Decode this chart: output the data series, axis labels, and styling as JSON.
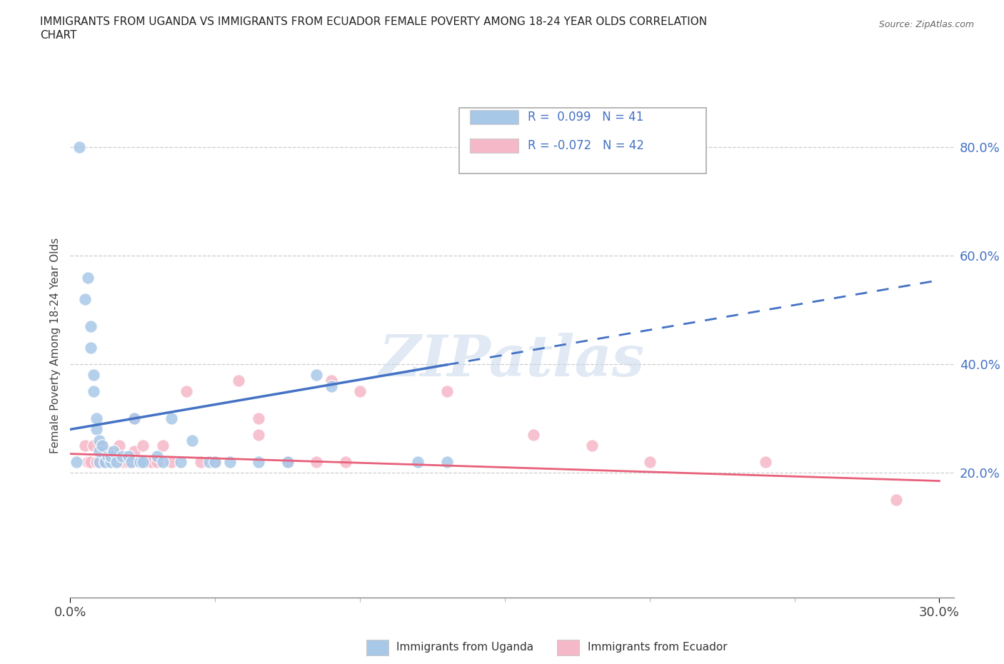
{
  "title_line1": "IMMIGRANTS FROM UGANDA VS IMMIGRANTS FROM ECUADOR FEMALE POVERTY AMONG 18-24 YEAR OLDS CORRELATION",
  "title_line2": "CHART",
  "source": "Source: ZipAtlas.com",
  "ylabel": "Female Poverty Among 18-24 Year Olds",
  "y_ticks": [
    0.0,
    0.2,
    0.4,
    0.6,
    0.8
  ],
  "y_tick_labels": [
    "",
    "20.0%",
    "40.0%",
    "60.0%",
    "80.0%"
  ],
  "xlim": [
    0.0,
    0.305
  ],
  "ylim": [
    -0.03,
    0.9
  ],
  "uganda_color": "#a8c8e8",
  "ecuador_color": "#f5b8c8",
  "uganda_line_color": "#4472c4",
  "ecuador_line_color": "#e8607a",
  "watermark": "ZIPatlas",
  "uganda_scatter_x": [
    0.003,
    0.006,
    0.007,
    0.008,
    0.008,
    0.009,
    0.009,
    0.01,
    0.01,
    0.01,
    0.011,
    0.012,
    0.012,
    0.013,
    0.014,
    0.014,
    0.015,
    0.016,
    0.018,
    0.02,
    0.021,
    0.022,
    0.024,
    0.025,
    0.03,
    0.032,
    0.035,
    0.038,
    0.042,
    0.048,
    0.05,
    0.055,
    0.065,
    0.075,
    0.085,
    0.09,
    0.12,
    0.13,
    0.005,
    0.007,
    0.002
  ],
  "uganda_scatter_y": [
    0.8,
    0.56,
    0.43,
    0.38,
    0.35,
    0.28,
    0.3,
    0.26,
    0.22,
    0.24,
    0.25,
    0.22,
    0.22,
    0.23,
    0.22,
    0.23,
    0.24,
    0.22,
    0.23,
    0.23,
    0.22,
    0.3,
    0.22,
    0.22,
    0.23,
    0.22,
    0.3,
    0.22,
    0.26,
    0.22,
    0.22,
    0.22,
    0.22,
    0.22,
    0.38,
    0.36,
    0.22,
    0.22,
    0.52,
    0.47,
    0.22
  ],
  "ecuador_scatter_x": [
    0.005,
    0.006,
    0.007,
    0.008,
    0.009,
    0.01,
    0.011,
    0.012,
    0.013,
    0.014,
    0.015,
    0.016,
    0.017,
    0.018,
    0.019,
    0.02,
    0.022,
    0.022,
    0.024,
    0.025,
    0.026,
    0.028,
    0.03,
    0.032,
    0.035,
    0.04,
    0.045,
    0.05,
    0.058,
    0.065,
    0.065,
    0.075,
    0.085,
    0.09,
    0.095,
    0.1,
    0.13,
    0.16,
    0.18,
    0.2,
    0.24,
    0.285
  ],
  "ecuador_scatter_y": [
    0.25,
    0.22,
    0.22,
    0.25,
    0.22,
    0.22,
    0.25,
    0.22,
    0.24,
    0.22,
    0.22,
    0.22,
    0.25,
    0.22,
    0.22,
    0.22,
    0.3,
    0.24,
    0.22,
    0.25,
    0.22,
    0.22,
    0.22,
    0.25,
    0.22,
    0.35,
    0.22,
    0.22,
    0.37,
    0.27,
    0.3,
    0.22,
    0.22,
    0.37,
    0.22,
    0.35,
    0.35,
    0.27,
    0.25,
    0.22,
    0.22,
    0.15
  ],
  "uganda_trendline_x0": 0.0,
  "uganda_trendline_y0": 0.28,
  "uganda_trendline_x1": 0.3,
  "uganda_trendline_y1": 0.555,
  "ecuador_trendline_x0": 0.0,
  "ecuador_trendline_y0": 0.235,
  "ecuador_trendline_x1": 0.3,
  "ecuador_trendline_y1": 0.185
}
